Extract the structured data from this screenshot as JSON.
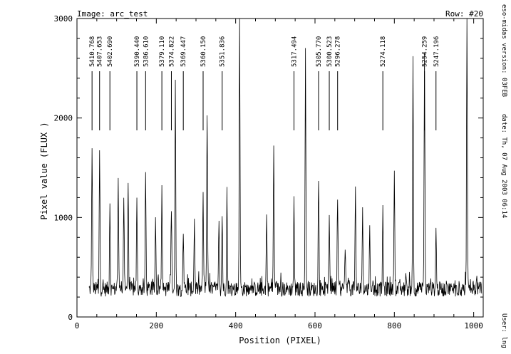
{
  "chart_data": {
    "type": "line",
    "header_left": "Image: arc_test",
    "header_right": "Row: #20",
    "xlabel": "Position (PIXEL)",
    "ylabel": "Pixel value (FLUX )",
    "xlim": [
      0,
      1024
    ],
    "ylim": [
      0,
      3000
    ],
    "x_ticks": [
      0,
      200,
      400,
      600,
      800,
      1000
    ],
    "y_ticks": [
      0,
      1000,
      2000,
      3000
    ],
    "x_tick_labels": [
      "0",
      "200",
      "400",
      "600",
      "800",
      "1000"
    ],
    "y_tick_labels": [
      "0",
      "1000",
      "2000",
      "3000"
    ],
    "grid": false,
    "side_info": [
      "eso-midas version: 03FEB",
      "date: Th, 07 Aug 2003 06:14",
      "User: lng"
    ],
    "line_identifications": [
      {
        "wavelength": "5410.768",
        "x": 38
      },
      {
        "wavelength": "5407.653",
        "x": 57
      },
      {
        "wavelength": "5402.690",
        "x": 83
      },
      {
        "wavelength": "5390.440",
        "x": 151
      },
      {
        "wavelength": "5386.610",
        "x": 173
      },
      {
        "wavelength": "5379.110",
        "x": 214
      },
      {
        "wavelength": "5374.822",
        "x": 238
      },
      {
        "wavelength": "5369.447",
        "x": 268
      },
      {
        "wavelength": "5360.150",
        "x": 318
      },
      {
        "wavelength": "5351.836",
        "x": 366
      },
      {
        "wavelength": "5317.494",
        "x": 547
      },
      {
        "wavelength": "5305.770",
        "x": 609
      },
      {
        "wavelength": "5300.523",
        "x": 636
      },
      {
        "wavelength": "5296.278",
        "x": 657
      },
      {
        "wavelength": "5274.118",
        "x": 771
      },
      {
        "wavelength": "5254.259",
        "x": 876
      },
      {
        "wavelength": "5247.196",
        "x": 905
      }
    ],
    "peaks": [
      [
        38,
        1740
      ],
      [
        57,
        1690
      ],
      [
        83,
        1170
      ],
      [
        104,
        1400
      ],
      [
        118,
        1230
      ],
      [
        129,
        1330
      ],
      [
        151,
        1170
      ],
      [
        173,
        1460
      ],
      [
        198,
        980
      ],
      [
        214,
        1280
      ],
      [
        238,
        1080
      ],
      [
        248,
        2320
      ],
      [
        268,
        900
      ],
      [
        296,
        1000
      ],
      [
        318,
        1220
      ],
      [
        328,
        2070
      ],
      [
        358,
        1000
      ],
      [
        366,
        1050
      ],
      [
        378,
        1210
      ],
      [
        410,
        3000
      ],
      [
        478,
        1010
      ],
      [
        496,
        1720
      ],
      [
        547,
        1170
      ],
      [
        576,
        2640
      ],
      [
        609,
        1410
      ],
      [
        636,
        950
      ],
      [
        657,
        1170
      ],
      [
        676,
        700
      ],
      [
        702,
        1280
      ],
      [
        720,
        1120
      ],
      [
        738,
        850
      ],
      [
        771,
        1050
      ],
      [
        800,
        1420
      ],
      [
        847,
        2570
      ],
      [
        876,
        2620
      ],
      [
        905,
        880
      ],
      [
        983,
        3000
      ],
      [
        1008,
        380
      ]
    ],
    "baseline": 280
  }
}
